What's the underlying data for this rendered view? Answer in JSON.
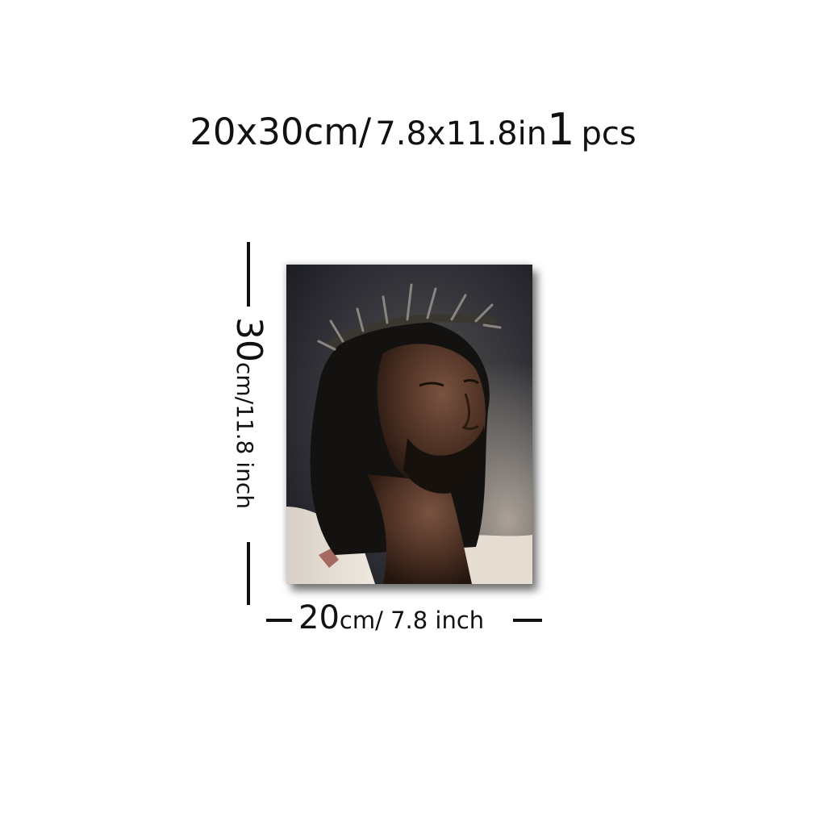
{
  "header": {
    "size_cm": "20x30cm/",
    "size_in": "7.8x11.8in",
    "quantity": "1",
    "unit": "pcs"
  },
  "height_dimension": {
    "value": "30",
    "unit_text": "cm/11.8 inch"
  },
  "width_dimension": {
    "value": "20",
    "unit_text": "cm/ 7.8 inch"
  },
  "colors": {
    "text": "#111111",
    "background": "#ffffff",
    "painting_dark": "#1b1d22",
    "painting_skin": "#4a2f22"
  }
}
